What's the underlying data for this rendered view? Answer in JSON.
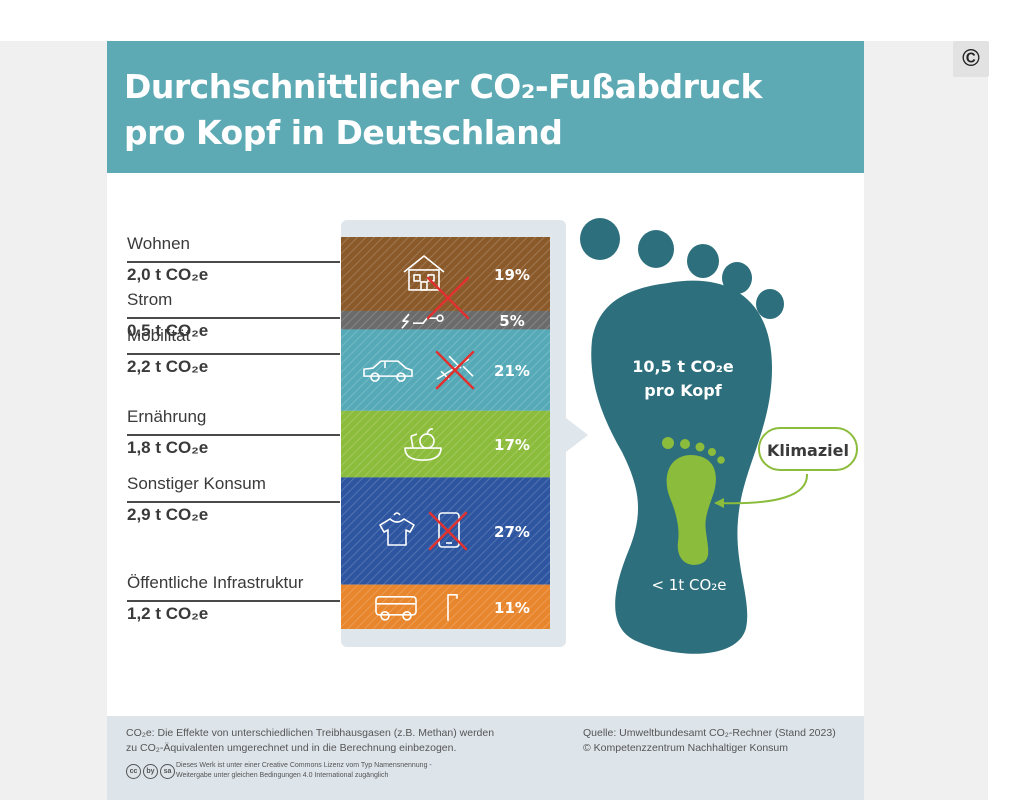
{
  "title": {
    "line1": "Durchschnittlicher CO₂-Fußabdruck",
    "line2": "pro Kopf in Deutschland"
  },
  "copyright_button": "©",
  "chart_data": {
    "type": "bar",
    "categories": [
      "Wohnen",
      "Strom",
      "Mobilität",
      "Ernährung",
      "Sonstiger Konsum",
      "Öffentliche Infrastruktur"
    ],
    "values": [
      2.0,
      0.5,
      2.2,
      1.8,
      2.9,
      1.2
    ],
    "value_labels": [
      "2,0 t CO₂e",
      "0,5 t CO₂e",
      "2,2 t CO₂e",
      "1,8 t CO₂e",
      "2,9 t CO₂e",
      "1,2 t CO₂e"
    ],
    "percent_labels": [
      "19%",
      "5%",
      "21%",
      "17%",
      "27%",
      "11%"
    ],
    "colors": [
      "#8b5a2b",
      "#6b6b6b",
      "#56aab8",
      "#8cbc3c",
      "#2d55a0",
      "#e8862e"
    ],
    "icons": [
      [
        "house-icon"
      ],
      [
        "plug-icon"
      ],
      [
        "car-icon",
        "airplane-icon"
      ],
      [
        "food-icon"
      ],
      [
        "shirt-icon",
        "phone-icon"
      ],
      [
        "bus-icon",
        "streetlamp-icon"
      ]
    ],
    "total_label": "10,5 t CO₂e",
    "total_sublabel": "pro Kopf",
    "goal_label": "Klimaziel",
    "goal_value_label": "< 1t CO₂e"
  },
  "colors": {
    "header": "#5eaab4",
    "foot": "#2d6f7c",
    "goal_foot": "#8cbc3c",
    "cross": "#e0312f"
  },
  "footer": {
    "note_line1": "CO₂e: Die Effekte von unterschiedlichen Treibhausgasen (z.B. Methan) werden",
    "note_line2": "zu CO₂-Äquivalenten umgerechnet und in die Berechnung einbezogen.",
    "source_line1": "Quelle: Umweltbundesamt CO₂-Rechner (Stand 2023)",
    "source_line2": "© Kompetenzzentrum Nachhaltiger Konsum",
    "license_line1": "Dieses Werk ist unter einer Creative Commons Lizenz vom Typ Namensnennung -",
    "license_line2": "Weitergabe unter gleichen Bedingungen 4.0 International zugänglich",
    "cc_icons": [
      "cc",
      "by",
      "sa"
    ]
  }
}
